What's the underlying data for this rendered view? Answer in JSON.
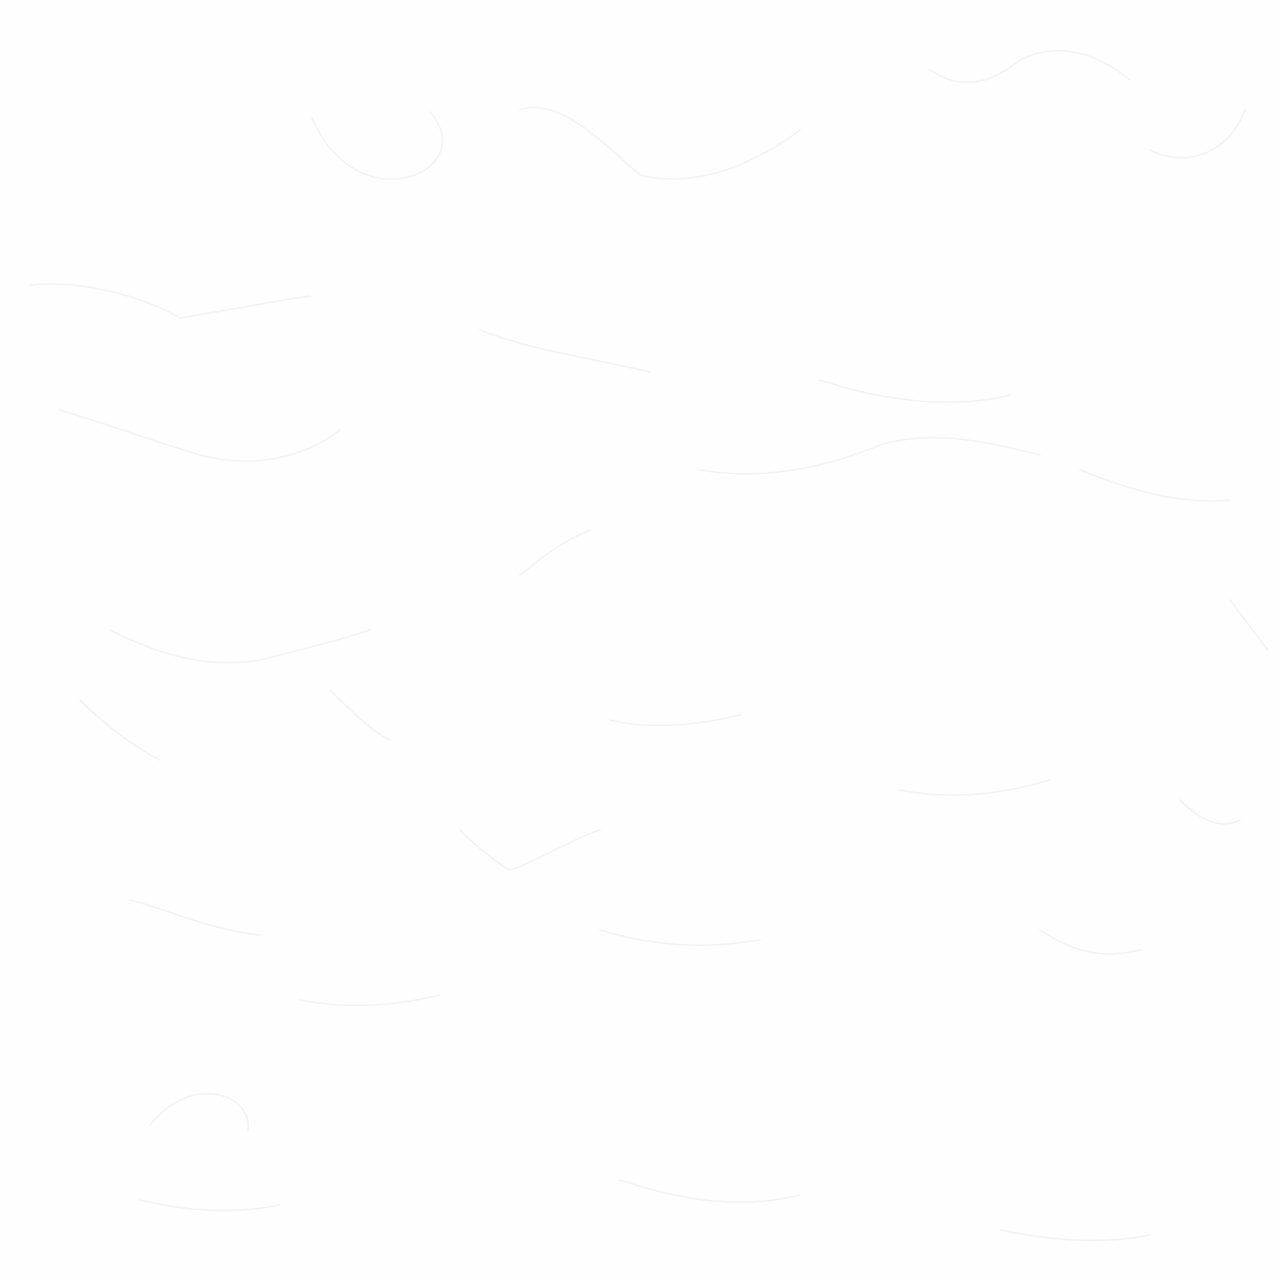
{
  "page": {
    "background_color": "#fefefe",
    "texture_color": "#f3f3f3"
  }
}
